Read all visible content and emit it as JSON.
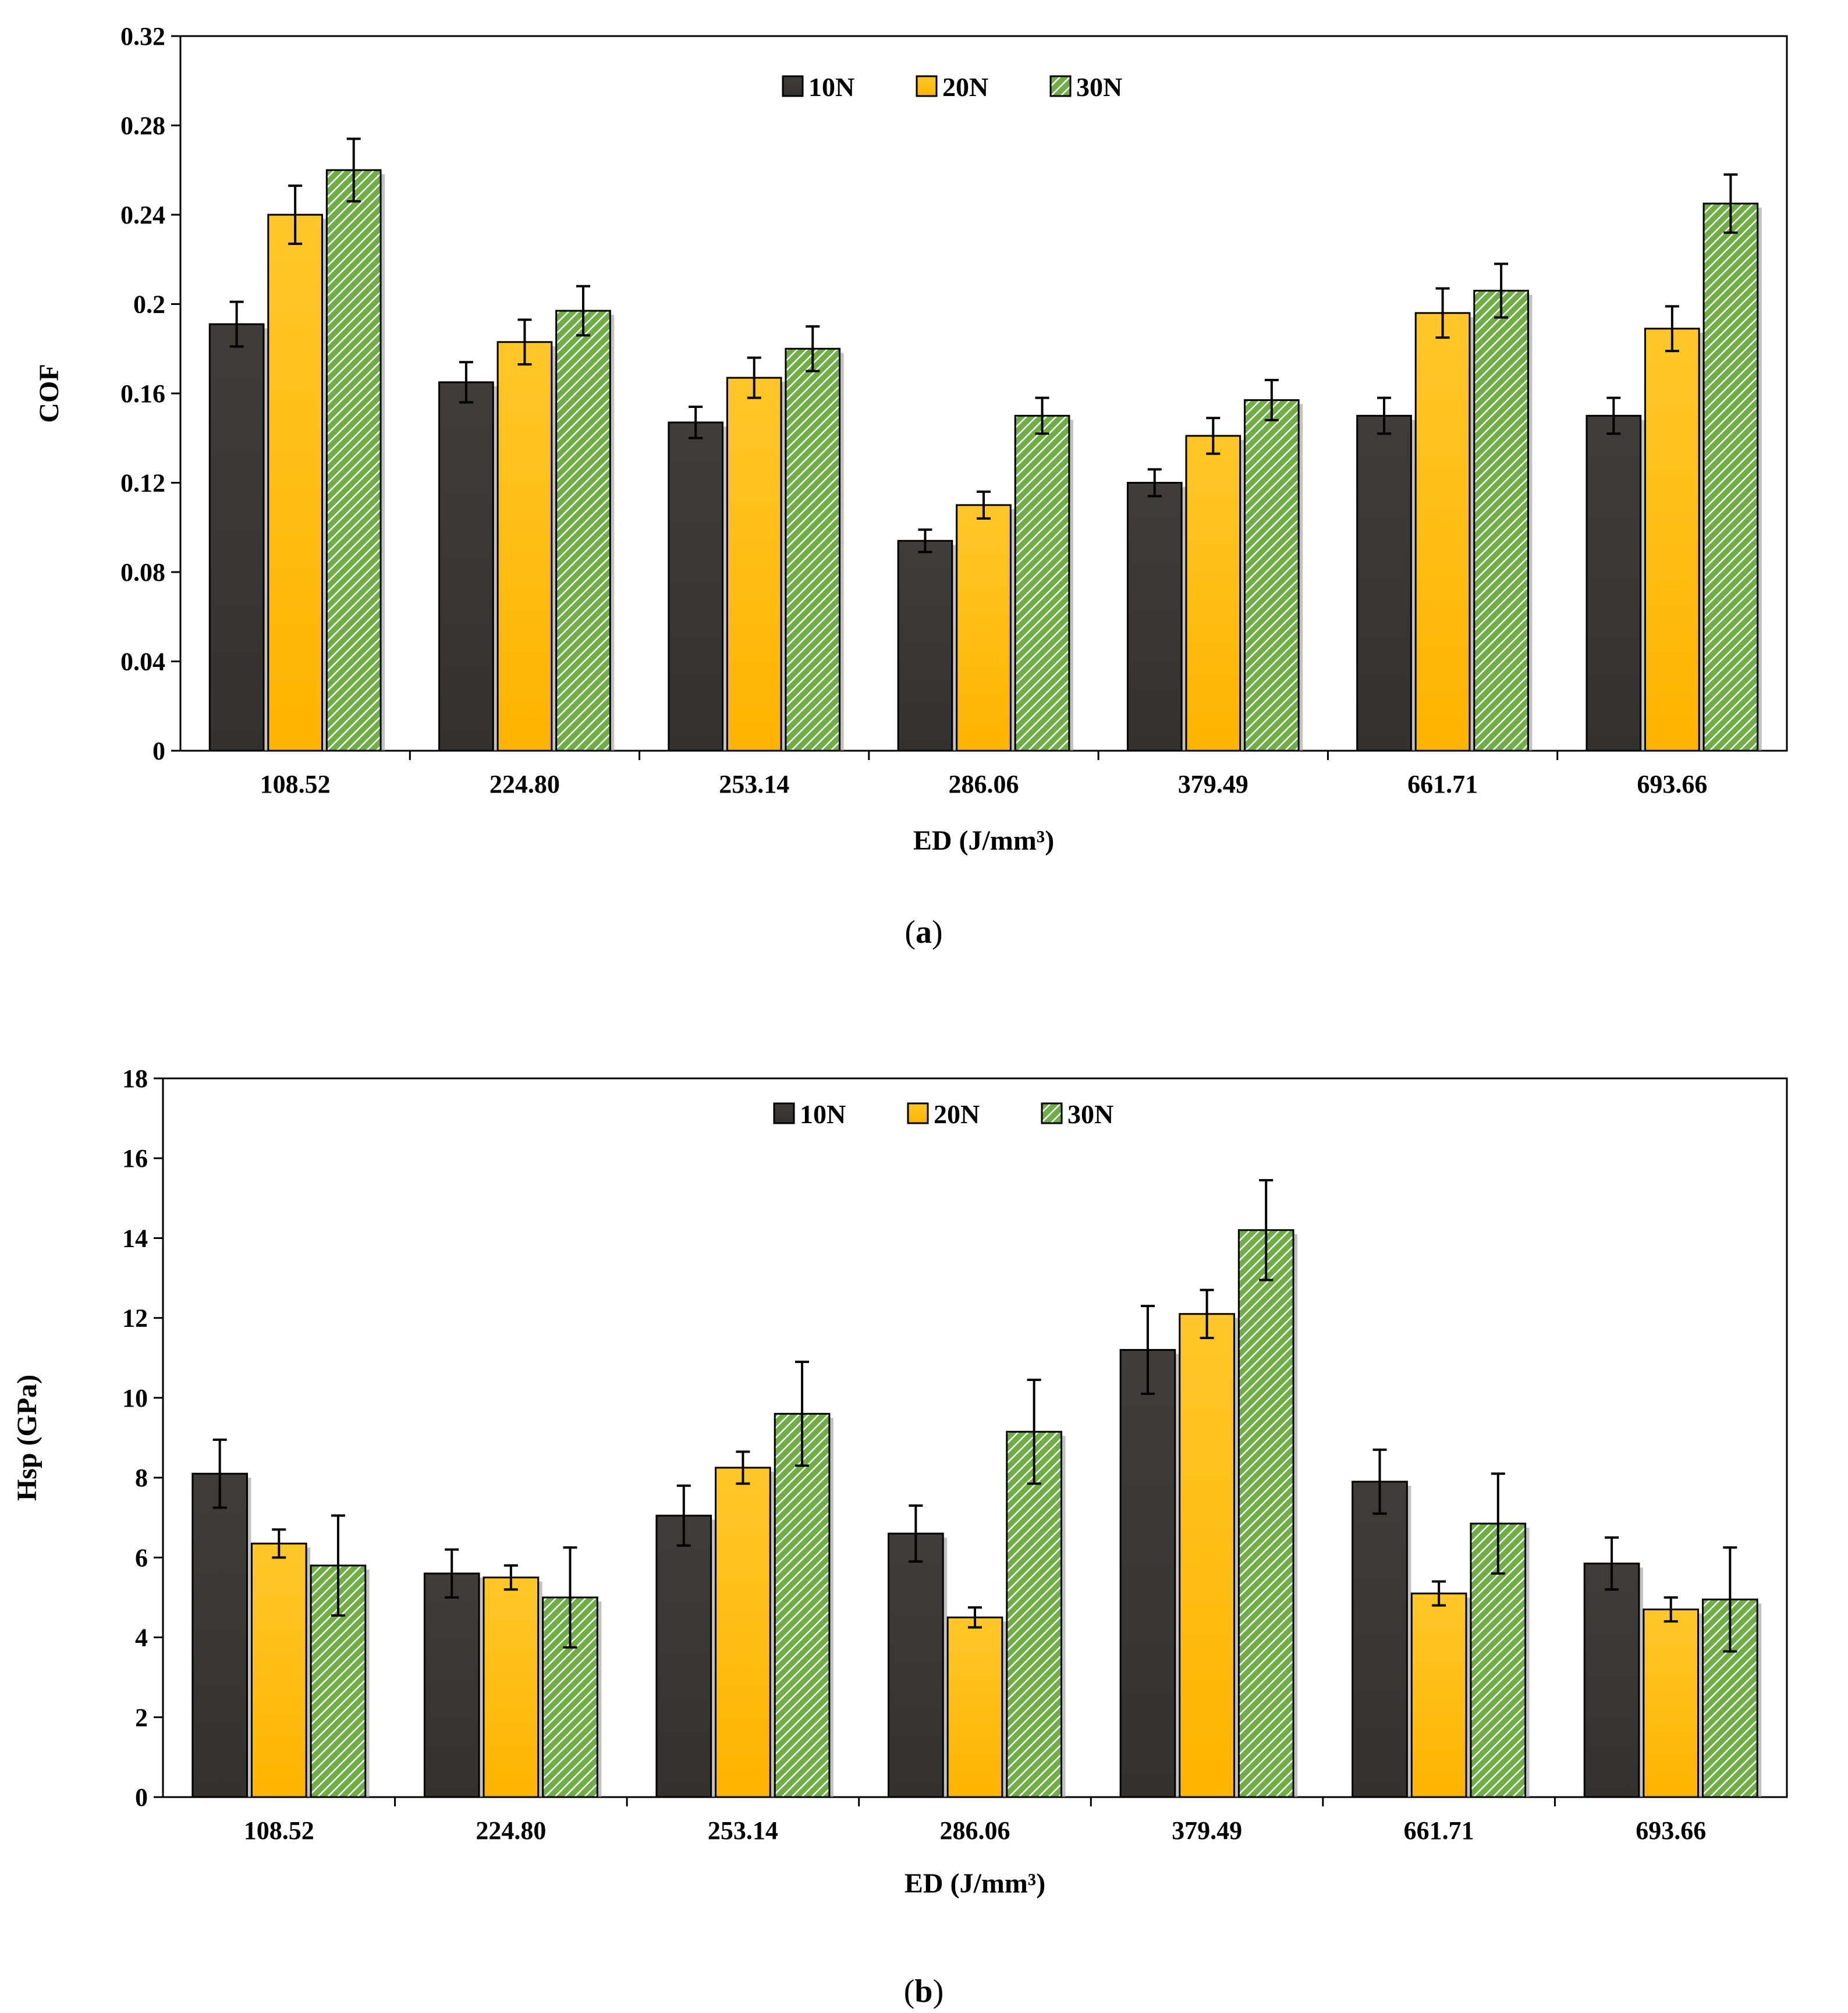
{
  "chart_data": [
    {
      "type": "bar",
      "id": "a",
      "caption_open": "(",
      "caption_letter": "a",
      "caption_close": ")",
      "categories": [
        "108.52",
        "224.80",
        "253.14",
        "286.06",
        "379.49",
        "661.71",
        "693.66"
      ],
      "series": [
        {
          "name": "10N",
          "color": "#3b3835",
          "values": [
            0.191,
            0.165,
            0.147,
            0.094,
            0.12,
            0.15,
            0.15
          ],
          "errors": [
            0.01,
            0.009,
            0.007,
            0.005,
            0.006,
            0.008,
            0.008
          ]
        },
        {
          "name": "20N",
          "color": "#ffc000",
          "values": [
            0.24,
            0.183,
            0.167,
            0.11,
            0.141,
            0.196,
            0.189
          ],
          "errors": [
            0.013,
            0.01,
            0.009,
            0.006,
            0.008,
            0.011,
            0.01
          ]
        },
        {
          "name": "30N",
          "color": "#70ad47",
          "values": [
            0.26,
            0.197,
            0.18,
            0.15,
            0.157,
            0.206,
            0.245
          ],
          "errors": [
            0.014,
            0.011,
            0.01,
            0.008,
            0.009,
            0.012,
            0.013
          ]
        }
      ],
      "xlabel": "ED (J/mm³)",
      "ylabel": "COF",
      "ylim": [
        0,
        0.32
      ],
      "yticks": [
        "0",
        "0.04",
        "0.08",
        "0.12",
        "0.16",
        "0.2",
        "0.24",
        "0.28",
        "0.32"
      ],
      "legend": "top-center"
    },
    {
      "type": "bar",
      "id": "b",
      "caption_open": "(",
      "caption_letter": "b",
      "caption_close": ")",
      "categories": [
        "108.52",
        "224.80",
        "253.14",
        "286.06",
        "379.49",
        "661.71",
        "693.66"
      ],
      "series": [
        {
          "name": "10N",
          "color": "#3b3835",
          "values": [
            8.1,
            5.6,
            7.05,
            6.6,
            11.2,
            7.9,
            5.85
          ],
          "errors": [
            0.85,
            0.6,
            0.75,
            0.7,
            1.1,
            0.8,
            0.65
          ]
        },
        {
          "name": "20N",
          "color": "#ffc000",
          "values": [
            6.35,
            5.5,
            8.25,
            4.5,
            12.1,
            5.1,
            4.7
          ],
          "errors": [
            0.35,
            0.3,
            0.4,
            0.25,
            0.6,
            0.3,
            0.3
          ]
        },
        {
          "name": "30N",
          "color": "#70ad47",
          "values": [
            5.8,
            5.0,
            9.6,
            9.15,
            14.2,
            6.85,
            4.95
          ],
          "errors": [
            1.25,
            1.25,
            1.3,
            1.3,
            1.25,
            1.25,
            1.3
          ]
        }
      ],
      "xlabel": "ED (J/mm³)",
      "ylabel": "Hsp (GPa)",
      "ylim": [
        0,
        18
      ],
      "yticks": [
        "0",
        "2",
        "4",
        "6",
        "8",
        "10",
        "12",
        "14",
        "16",
        "18"
      ],
      "legend": "top-center"
    }
  ]
}
